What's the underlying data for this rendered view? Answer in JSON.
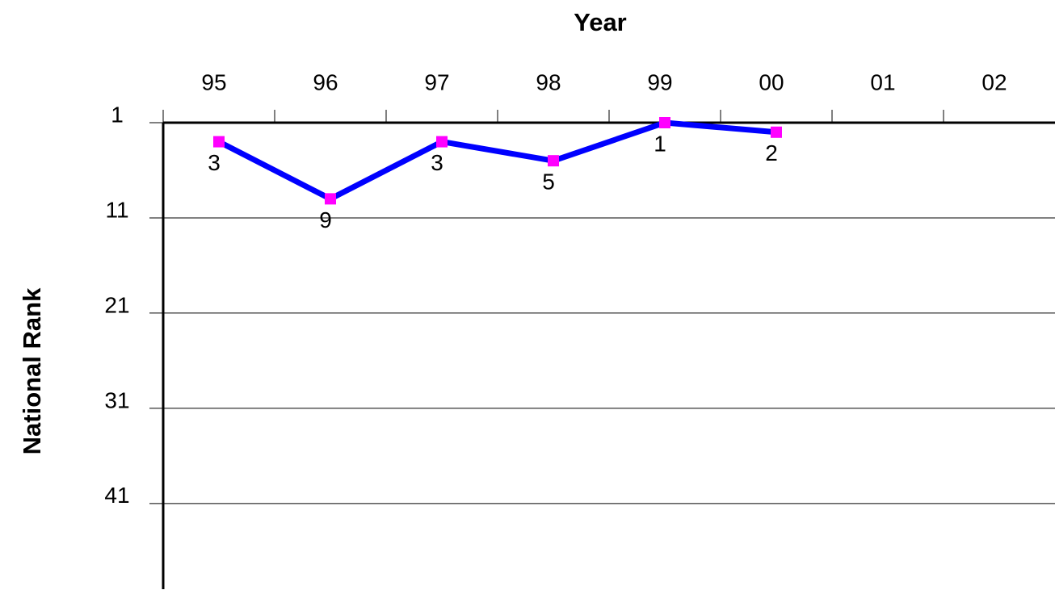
{
  "chart_data": {
    "type": "line",
    "title": "Year",
    "y_label": "National Rank",
    "categories": [
      "95",
      "96",
      "97",
      "98",
      "99",
      "00",
      "01",
      "02"
    ],
    "series": [
      {
        "name": "National Rank",
        "color": "#0000ff",
        "marker_color": "#ff00ff",
        "values": [
          3,
          9,
          3,
          5,
          1,
          2,
          null,
          null
        ]
      }
    ],
    "ylim": [
      1,
      50
    ],
    "yticks": [
      1,
      11,
      21,
      31,
      41
    ],
    "y_inverted": true,
    "x_axis_position": "top",
    "grid": true,
    "legend": false
  }
}
